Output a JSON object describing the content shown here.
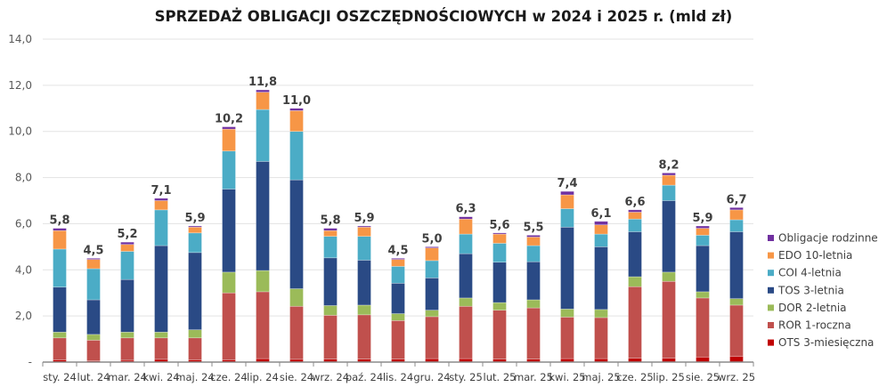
{
  "chart_data": {
    "type": "bar",
    "stacked": true,
    "title": "SPRZEDAŻ OBLIGACJI OSZCZĘDNOŚCIOWYCH w 2024 i 2025 r. (mld zł)",
    "xlabel": "",
    "ylabel": "",
    "ylim": [
      0,
      14
    ],
    "yticks": [
      "-",
      "2,0",
      "4,0",
      "6,0",
      "8,0",
      "10,0",
      "12,0",
      "14,0"
    ],
    "grid": true,
    "legend_position": "right",
    "categories": [
      "sty. 24",
      "lut. 24",
      "mar. 24",
      "kwi. 24",
      "maj. 24",
      "cze. 24",
      "lip. 24",
      "sie. 24",
      "wrz. 24",
      "paź. 24",
      "lis. 24",
      "gru. 24",
      "sty. 25",
      "lut. 25",
      "mar. 25",
      "kwi. 25",
      "maj. 25",
      "cze. 25",
      "lip. 25",
      "sie. 25",
      "wrz. 25"
    ],
    "totals": [
      "5,8",
      "4,5",
      "5,2",
      "7,1",
      "5,9",
      "10,2",
      "11,8",
      "11,0",
      "5,8",
      "5,9",
      "4,5",
      "5,0",
      "6,3",
      "5,6",
      "5,5",
      "7,4",
      "6,1",
      "6,6",
      "8,2",
      "5,9",
      "6,7"
    ],
    "series": [
      {
        "name": "OTS 3-miesięczna",
        "color": "#c00000",
        "values": [
          0.1,
          0.05,
          0.08,
          0.12,
          0.1,
          0.1,
          0.15,
          0.12,
          0.13,
          0.13,
          0.13,
          0.15,
          0.15,
          0.13,
          0.13,
          0.15,
          0.15,
          0.17,
          0.17,
          0.22,
          0.25
        ]
      },
      {
        "name": "ROR 1-roczna",
        "color": "#c0504d",
        "values": [
          0.95,
          0.9,
          0.97,
          0.93,
          0.95,
          2.9,
          2.9,
          2.3,
          1.9,
          1.92,
          1.67,
          1.82,
          2.27,
          2.12,
          2.22,
          1.8,
          1.78,
          3.1,
          3.33,
          2.56,
          2.22
        ]
      },
      {
        "name": "DOR 2-letnia",
        "color": "#9bbb59",
        "values": [
          0.25,
          0.25,
          0.25,
          0.25,
          0.35,
          0.9,
          0.92,
          0.76,
          0.42,
          0.42,
          0.3,
          0.28,
          0.36,
          0.33,
          0.35,
          0.35,
          0.35,
          0.43,
          0.4,
          0.27,
          0.28
        ]
      },
      {
        "name": "TOS 3-letnia",
        "color": "#2a4a85",
        "values": [
          1.95,
          1.5,
          2.28,
          3.75,
          3.35,
          3.6,
          4.73,
          4.72,
          2.07,
          1.95,
          1.32,
          1.4,
          1.92,
          1.75,
          1.65,
          3.55,
          2.72,
          1.95,
          3.1,
          2.0,
          2.9
        ]
      },
      {
        "name": "COI 4-letnia",
        "color": "#4bacc6",
        "values": [
          1.65,
          1.35,
          1.22,
          1.55,
          0.85,
          1.65,
          2.25,
          2.1,
          0.93,
          1.03,
          0.73,
          0.75,
          0.85,
          0.82,
          0.7,
          0.8,
          0.55,
          0.55,
          0.67,
          0.45,
          0.52
        ]
      },
      {
        "name": "EDO 10-letnia",
        "color": "#f79646",
        "values": [
          0.8,
          0.4,
          0.3,
          0.4,
          0.25,
          0.95,
          0.75,
          0.9,
          0.25,
          0.4,
          0.3,
          0.55,
          0.65,
          0.4,
          0.37,
          0.6,
          0.4,
          0.3,
          0.43,
          0.3,
          0.43
        ]
      },
      {
        "name": "Obligacje rodzinne",
        "color": "#7030a0",
        "values": [
          0.1,
          0.05,
          0.1,
          0.1,
          0.05,
          0.1,
          0.1,
          0.1,
          0.1,
          0.05,
          0.05,
          0.05,
          0.1,
          0.05,
          0.08,
          0.15,
          0.15,
          0.1,
          0.1,
          0.1,
          0.1
        ]
      }
    ]
  }
}
